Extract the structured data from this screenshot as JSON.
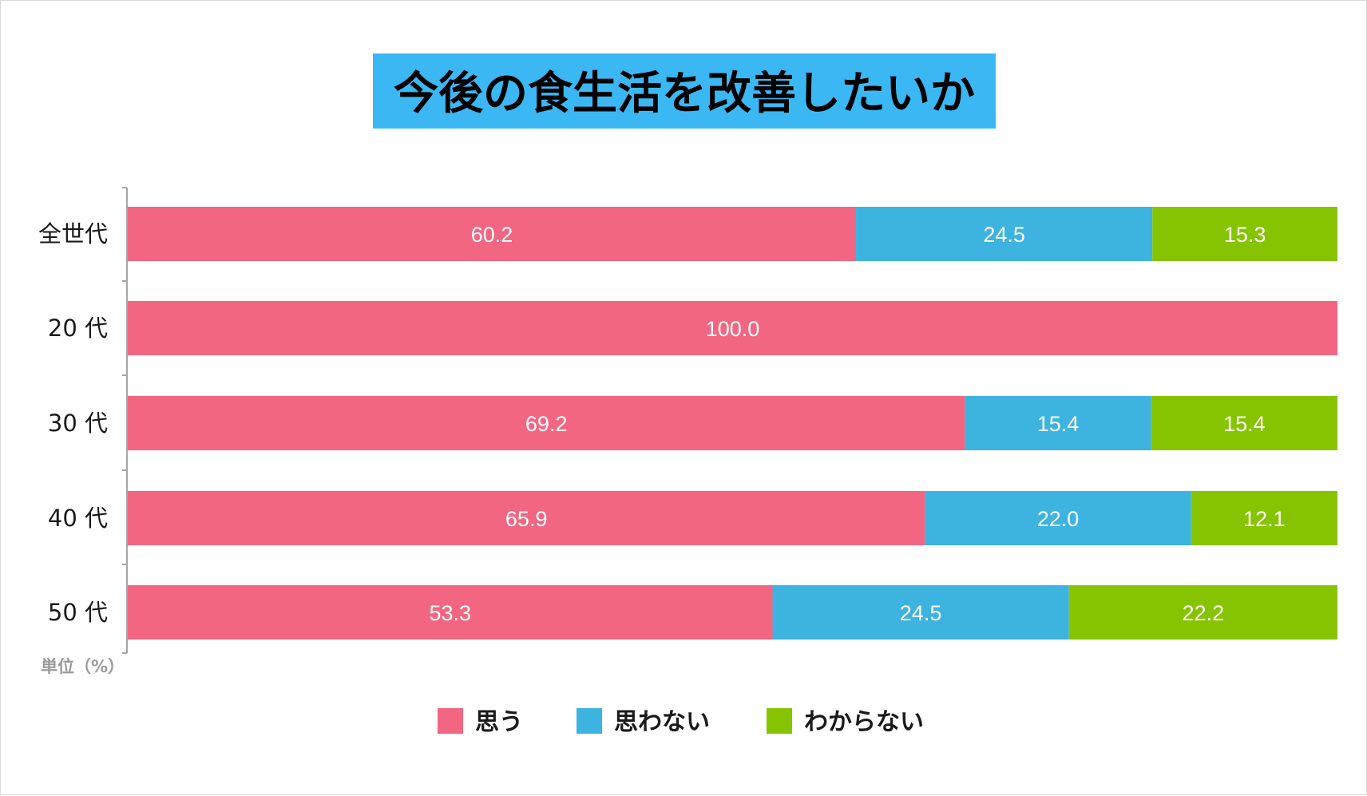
{
  "chart_data": {
    "type": "bar",
    "orientation": "horizontal",
    "stacked": true,
    "title": "今後の食生活を改善したいか",
    "unit_note": "単位（%）",
    "categories": [
      "全世代",
      "20 代",
      "30 代",
      "40 代",
      "50 代"
    ],
    "series": [
      {
        "name": "思う",
        "color": "#f26682",
        "values": [
          60.2,
          100.0,
          69.2,
          65.9,
          53.3
        ]
      },
      {
        "name": "思わない",
        "color": "#3db3e0",
        "values": [
          24.5,
          0,
          15.4,
          22.0,
          24.5
        ]
      },
      {
        "name": "わからない",
        "color": "#86c402",
        "values": [
          15.3,
          0,
          15.4,
          12.1,
          22.2
        ]
      }
    ],
    "xlim": [
      0,
      100
    ],
    "grid": false,
    "legend_position": "bottom",
    "title_background": "#3bb8f3"
  }
}
